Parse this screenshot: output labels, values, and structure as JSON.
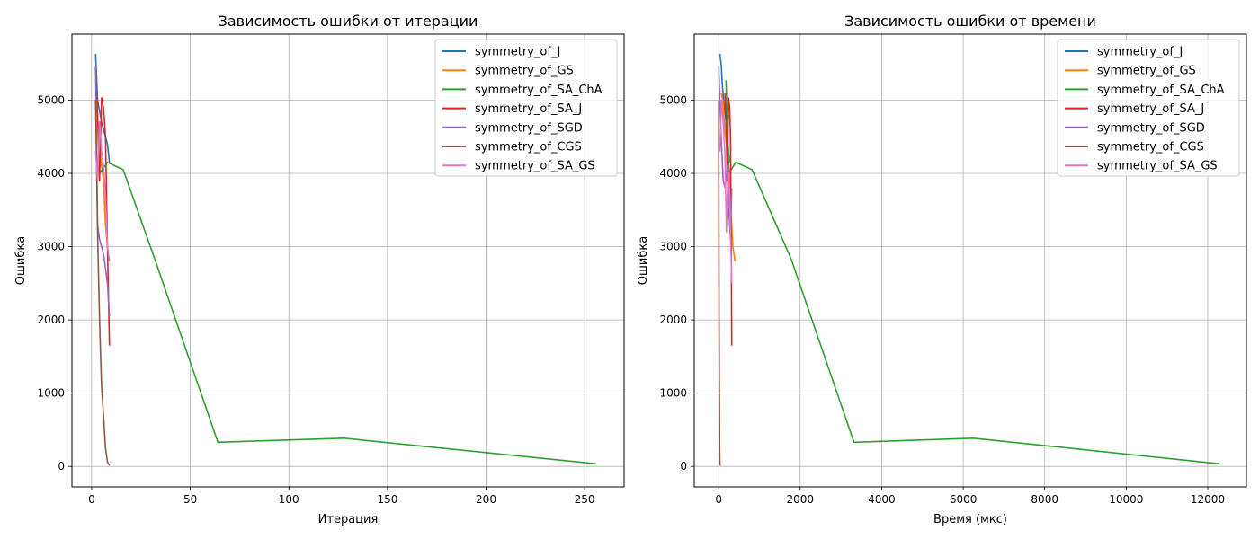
{
  "chart_data": [
    {
      "type": "line",
      "title": "Зависимость ошибки от итерации",
      "xlabel": "Итерация",
      "ylabel": "Ошибка",
      "xlim": [
        -10,
        270
      ],
      "ylim": [
        -280,
        5900
      ],
      "xticks": [
        0,
        50,
        100,
        150,
        200,
        250
      ],
      "yticks": [
        0,
        1000,
        2000,
        3000,
        4000,
        5000
      ],
      "grid": true,
      "legend_position": "top-right",
      "series": [
        {
          "name": "symmetry_of_J",
          "color": "#1f77b4",
          "x": [
            2,
            3,
            4,
            5,
            6,
            7,
            8,
            9
          ],
          "y": [
            5630,
            5000,
            4850,
            4700,
            4600,
            4500,
            4400,
            4150
          ]
        },
        {
          "name": "symmetry_of_GS",
          "color": "#ff7f0e",
          "x": [
            2,
            3,
            4,
            5,
            6,
            7,
            8,
            9
          ],
          "y": [
            5100,
            4800,
            4350,
            4100,
            3900,
            3300,
            3000,
            2800
          ]
        },
        {
          "name": "symmetry_of_SA_ChA",
          "color": "#2ca02c",
          "x": [
            4,
            8,
            16,
            32,
            64,
            128,
            256
          ],
          "y": [
            4000,
            4150,
            4050,
            2830,
            330,
            385,
            35
          ]
        },
        {
          "name": "symmetry_of_SA_J",
          "color": "#d62728",
          "x": [
            2,
            3,
            4,
            5,
            6,
            7,
            8,
            9
          ],
          "y": [
            5450,
            4800,
            3900,
            5030,
            4900,
            4500,
            3000,
            1650
          ]
        },
        {
          "name": "symmetry_of_SGD",
          "color": "#9467bd",
          "x": [
            2,
            3,
            4,
            5,
            6,
            7,
            8,
            9
          ],
          "y": [
            5460,
            3300,
            3100,
            3000,
            2900,
            2700,
            2500,
            2050
          ]
        },
        {
          "name": "symmetry_of_CGS",
          "color": "#8c564b",
          "x": [
            2,
            3,
            4,
            5,
            6,
            7,
            8,
            9
          ],
          "y": [
            5000,
            3200,
            2000,
            1100,
            700,
            250,
            60,
            10
          ]
        },
        {
          "name": "symmetry_of_SA_GS",
          "color": "#e377c2",
          "x": [
            2,
            3,
            4,
            5,
            6,
            7,
            8,
            9
          ],
          "y": [
            4300,
            3900,
            4700,
            4300,
            4100,
            3700,
            3000,
            2800
          ]
        }
      ]
    },
    {
      "type": "line",
      "title": "Зависимость ошибки от времени",
      "xlabel": "Время (мкс)",
      "ylabel": "Ошибка",
      "xlim": [
        -600,
        12950
      ],
      "ylim": [
        -280,
        5900
      ],
      "xticks": [
        0,
        2000,
        4000,
        6000,
        8000,
        10000,
        12000
      ],
      "yticks": [
        0,
        1000,
        2000,
        3000,
        4000,
        5000
      ],
      "grid": true,
      "legend_position": "top-right",
      "series": [
        {
          "name": "symmetry_of_J",
          "color": "#1f77b4",
          "x": [
            30,
            60,
            90,
            120,
            150,
            180,
            210,
            260
          ],
          "y": [
            5630,
            5500,
            5200,
            5000,
            4850,
            4700,
            4500,
            4150
          ]
        },
        {
          "name": "symmetry_of_GS",
          "color": "#ff7f0e",
          "x": [
            60,
            100,
            150,
            200,
            250,
            300,
            350,
            400
          ],
          "y": [
            5100,
            5000,
            4600,
            4350,
            4100,
            3500,
            3000,
            2800
          ]
        },
        {
          "name": "symmetry_of_SA_ChA",
          "color": "#2ca02c",
          "x": [
            180,
            250,
            420,
            820,
            1780,
            3320,
            6250,
            12300
          ],
          "y": [
            5270,
            4000,
            4150,
            4050,
            2830,
            330,
            385,
            35
          ]
        },
        {
          "name": "symmetry_of_SA_J",
          "color": "#d62728",
          "x": [
            150,
            180,
            210,
            240,
            270,
            290,
            310,
            320
          ],
          "y": [
            5100,
            4800,
            3900,
            5030,
            4900,
            4500,
            3000,
            1650
          ]
        },
        {
          "name": "symmetry_of_SGD",
          "color": "#9467bd",
          "x": [
            0,
            60,
            110,
            160,
            210,
            250,
            290,
            320
          ],
          "y": [
            5460,
            4500,
            3900,
            3800,
            4100,
            3500,
            3100,
            3800
          ]
        },
        {
          "name": "symmetry_of_CGS",
          "color": "#8c564b",
          "x": [
            0,
            5,
            10,
            15,
            20,
            25,
            30,
            35
          ],
          "y": [
            5000,
            3200,
            2000,
            1100,
            700,
            250,
            60,
            10
          ]
        },
        {
          "name": "symmetry_of_SA_GS",
          "color": "#e377c2",
          "x": [
            30,
            70,
            110,
            150,
            190,
            230,
            270,
            320
          ],
          "y": [
            4300,
            5000,
            4700,
            4300,
            3200,
            4100,
            3700,
            2500
          ]
        }
      ]
    }
  ]
}
